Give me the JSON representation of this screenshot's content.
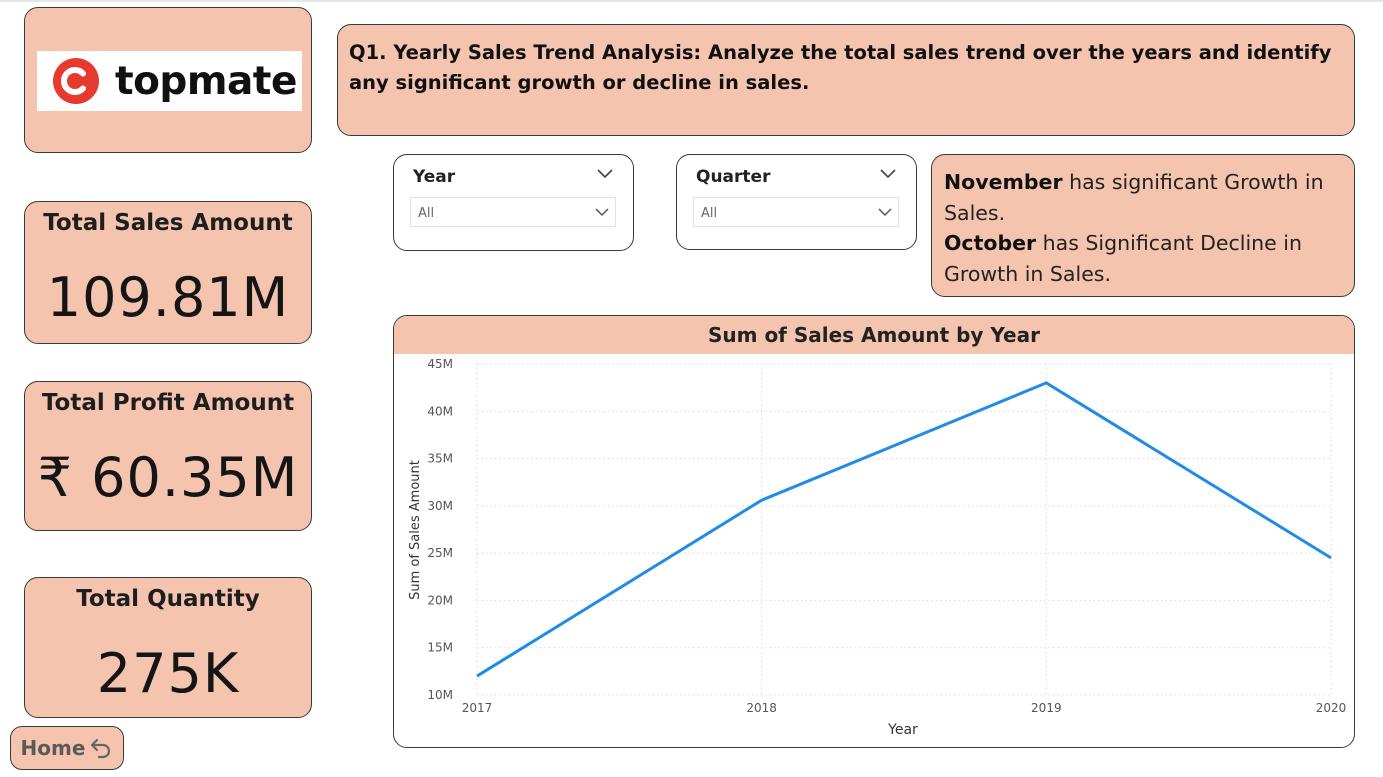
{
  "logo": {
    "text": "topmate",
    "icon": "topmate-logo-icon",
    "brand_color": "#e63a2e"
  },
  "kpis": {
    "sales": {
      "label": "Total Sales Amount",
      "value": "109.81M"
    },
    "profit": {
      "label": "Total Profit Amount",
      "value": "₹ 60.35M"
    },
    "quantity": {
      "label": "Total Quantity",
      "value": "275K"
    }
  },
  "home": {
    "label": "Home",
    "icon": "return-arrow-icon"
  },
  "question": {
    "text": "Q1. Yearly Sales Trend Analysis: Analyze the total sales trend over the years and identify any significant growth or decline in sales."
  },
  "slicers": {
    "year": {
      "title": "Year",
      "selected": "All"
    },
    "quarter": {
      "title": "Quarter",
      "selected": "All"
    }
  },
  "insight": {
    "growth_month": "November",
    "growth_text": " has significant Growth in Sales.",
    "decline_month": "October",
    "decline_text": " has Significant Decline in Growth in Sales."
  },
  "colors": {
    "card_fill": "#f5c4ae",
    "line": "#228be6"
  },
  "chart_data": {
    "type": "line",
    "title": "Sum of Sales Amount by Year",
    "xlabel": "Year",
    "ylabel": "Sum of Sales Amount",
    "categories": [
      "2017",
      "2018",
      "2019",
      "2020"
    ],
    "series": [
      {
        "values": [
          12000000,
          30600000,
          43000000,
          24500000
        ]
      }
    ],
    "ylim": [
      10000000,
      45000000
    ],
    "yticks": [
      10000000,
      15000000,
      20000000,
      25000000,
      30000000,
      35000000,
      40000000,
      45000000
    ],
    "ytick_labels": [
      "10M",
      "15M",
      "20M",
      "25M",
      "30M",
      "35M",
      "40M",
      "45M"
    ],
    "grid": true
  }
}
